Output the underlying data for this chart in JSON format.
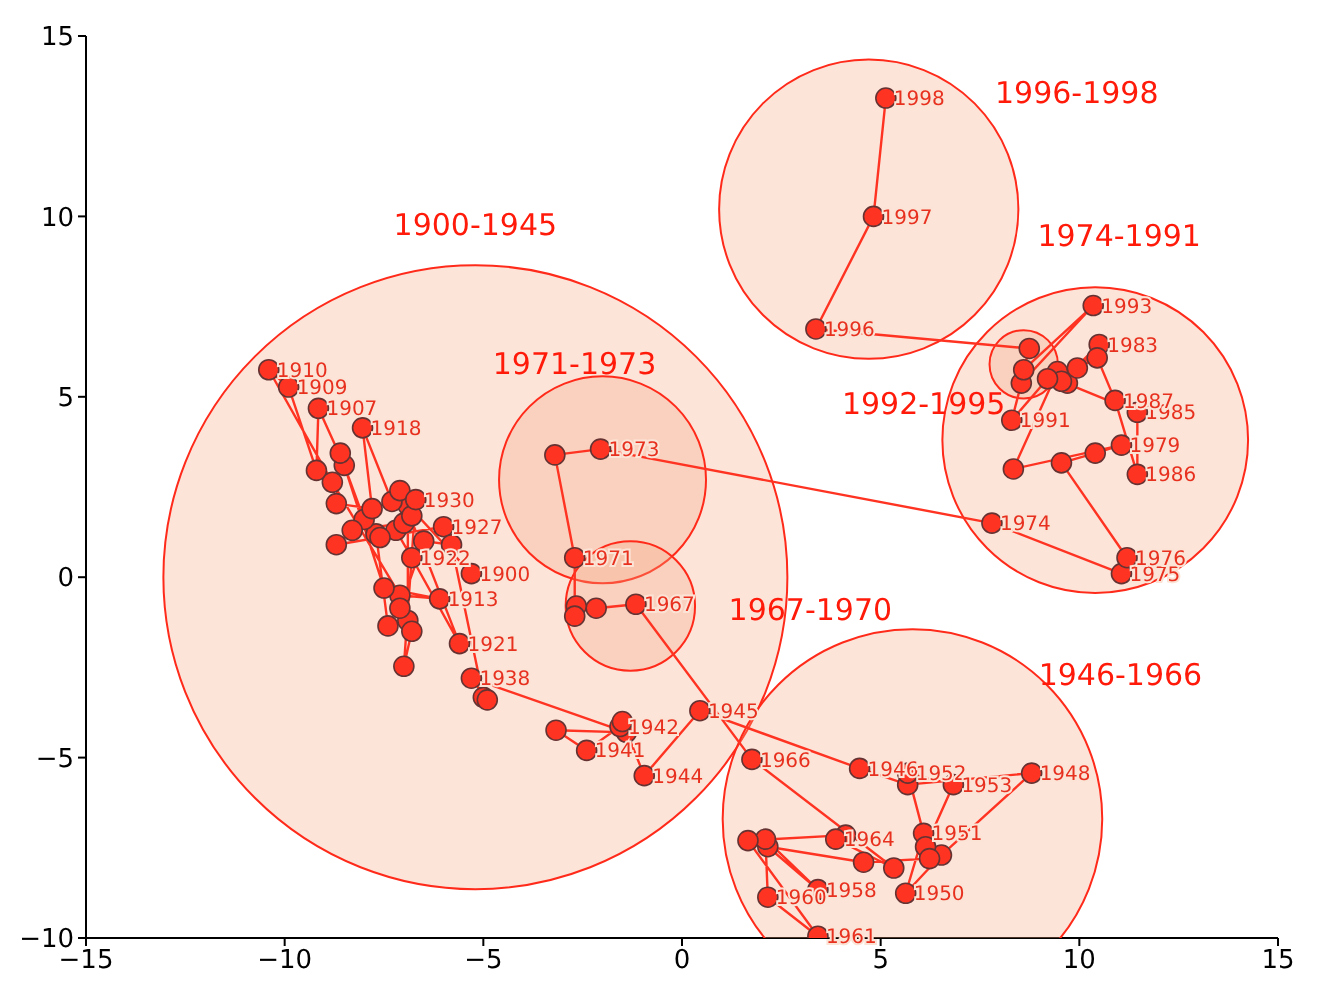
{
  "chart_data": {
    "type": "line",
    "xlim": [
      -15,
      15
    ],
    "ylim": [
      -10,
      15
    ],
    "xticks": [
      -15,
      -10,
      -5,
      0,
      5,
      10,
      15
    ],
    "yticks": [
      -10,
      -5,
      0,
      5,
      10,
      15
    ],
    "marker": "circle",
    "annotations": [
      "1900-1945",
      "1946-1966",
      "1974-1991",
      "1996-1998",
      "1971-1973",
      "1967-1970",
      "1992-1995",
      {
        "text": "1900",
        "x": -5.3,
        "y": 0.1
      },
      {
        "text": "1907",
        "x": -9.15,
        "y": 4.68
      },
      {
        "text": "1909",
        "x": -9.9,
        "y": 5.27
      },
      {
        "text": "1910",
        "x": -10.4,
        "y": 5.75
      },
      {
        "text": "1913",
        "x": -6.1,
        "y": -0.6
      },
      {
        "text": "1918",
        "x": -8.04,
        "y": 4.14
      },
      {
        "text": "1921",
        "x": -5.6,
        "y": -1.84
      },
      {
        "text": "1922",
        "x": -6.8,
        "y": 0.54
      },
      {
        "text": "1927",
        "x": -6.0,
        "y": 1.4
      },
      {
        "text": "1930",
        "x": -6.7,
        "y": 2.15
      },
      {
        "text": "1938",
        "x": -5.3,
        "y": -2.8
      },
      {
        "text": "1941",
        "x": -2.4,
        "y": -4.8
      },
      {
        "text": "1942",
        "x": -1.56,
        "y": -4.14
      },
      {
        "text": "1944",
        "x": -0.95,
        "y": -5.5
      },
      {
        "text": "1945",
        "x": 0.45,
        "y": -3.7
      },
      {
        "text": "1946",
        "x": 4.47,
        "y": -5.3
      },
      {
        "text": "1948",
        "x": 8.8,
        "y": -5.43
      },
      {
        "text": "1950",
        "x": 5.63,
        "y": -8.76
      },
      {
        "text": "1951",
        "x": 6.08,
        "y": -7.1
      },
      {
        "text": "1952",
        "x": 5.68,
        "y": -5.43
      },
      {
        "text": "1953",
        "x": 6.83,
        "y": -5.75
      },
      {
        "text": "1958",
        "x": 3.42,
        "y": -8.66
      },
      {
        "text": "1960",
        "x": 2.16,
        "y": -8.87
      },
      {
        "text": "1961",
        "x": 3.42,
        "y": -9.95
      },
      {
        "text": "1964",
        "x": 3.87,
        "y": -7.26
      },
      {
        "text": "1966",
        "x": 1.76,
        "y": -5.05
      },
      {
        "text": "1967",
        "x": -1.16,
        "y": -0.75
      },
      {
        "text": "1971",
        "x": -2.7,
        "y": 0.54
      },
      {
        "text": "1973",
        "x": -2.05,
        "y": 3.55
      },
      {
        "text": "1974",
        "x": 7.8,
        "y": 1.5
      },
      {
        "text": "1975",
        "x": 11.06,
        "y": 0.1
      },
      {
        "text": "1976",
        "x": 11.2,
        "y": 0.54
      },
      {
        "text": "1979",
        "x": 11.06,
        "y": 3.66
      },
      {
        "text": "1983",
        "x": 10.5,
        "y": 6.45
      },
      {
        "text": "1985",
        "x": 11.46,
        "y": 4.57
      },
      {
        "text": "1986",
        "x": 11.46,
        "y": 2.85
      },
      {
        "text": "1987",
        "x": 10.9,
        "y": 4.9
      },
      {
        "text": "1991",
        "x": 8.3,
        "y": 4.35
      },
      {
        "text": "1993",
        "x": 10.35,
        "y": 7.53
      },
      {
        "text": "1996",
        "x": 3.37,
        "y": 6.88
      },
      {
        "text": "1997",
        "x": 4.82,
        "y": 10.0
      },
      {
        "text": "1998",
        "x": 5.13,
        "y": 13.28
      }
    ],
    "series": [
      {
        "type": "bubble",
        "color": "#f4a582",
        "x": [
          -5.2,
          5.8,
          10.4,
          4.7,
          -2,
          -1.3,
          8.6
        ],
        "values": [
          0,
          -6.7,
          3.8,
          10.2,
          2.7,
          -0.8,
          5.9
        ],
        "sizes": [
          1,
          0.37,
          0.24,
          0.23,
          0.11,
          0.043,
          0.012
        ]
      },
      {
        "color": "#ff3322",
        "x": [
          -5.3,
          -6.9,
          -6.9,
          -7.4,
          -7.7,
          -8.0,
          -8.5,
          -9.15,
          -9.2,
          -9.9,
          -10.4,
          -8.8,
          -7.1,
          -6.1,
          -7.5,
          -8.6,
          -8.7,
          -7.8,
          -8.04,
          -7.3,
          -7.1,
          -5.6,
          -6.8,
          -7.2,
          -7.0,
          -8.3,
          -8.7,
          -6.0,
          -7.6,
          -6.8,
          -6.7,
          -7.0,
          -6.8,
          -7.1,
          -6.5,
          -5.8,
          -5.0,
          -4.9,
          -5.3,
          -1.4,
          -3.17,
          -2.4,
          -1.56,
          -1.5,
          -0.95,
          0.45,
          4.47,
          5.68,
          8.8,
          6.53,
          5.63,
          6.08,
          5.68,
          6.83,
          6.13,
          6.23,
          4.57,
          2.16,
          3.42,
          2.1,
          2.16,
          3.42,
          1.66,
          4.12,
          3.87,
          5.33,
          1.76,
          -1.16,
          -2.16,
          -2.66,
          -2.7,
          -2.7,
          -3.2,
          -2.05,
          7.8,
          11.06,
          11.2,
          9.55,
          10.4,
          11.06,
          8.34,
          9.45,
          9.7,
          10.5,
          9.55,
          11.46,
          11.46,
          10.9,
          10.45,
          9.95,
          9.2,
          8.3,
          8.54,
          10.35,
          8.6,
          8.74,
          3.37,
          4.82,
          5.13
        ],
        "values": [
          0.1,
          2.0,
          -1.2,
          -1.35,
          1.2,
          1.6,
          3.1,
          4.68,
          2.96,
          5.27,
          5.75,
          2.63,
          -0.5,
          -0.6,
          -0.3,
          3.44,
          2.04,
          1.9,
          4.14,
          2.1,
          2.4,
          -1.84,
          0.54,
          1.3,
          1.5,
          1.3,
          0.9,
          1.4,
          1.1,
          1.7,
          2.15,
          -2.47,
          -1.5,
          -0.86,
          1.0,
          0.9,
          -3.33,
          -3.4,
          -2.8,
          -4.3,
          -4.24,
          -4.8,
          -4.14,
          -4.0,
          -5.5,
          -3.7,
          -5.3,
          -5.75,
          -5.43,
          -7.7,
          -8.76,
          -7.1,
          -5.43,
          -5.75,
          -7.47,
          -7.8,
          -7.9,
          -7.47,
          -8.66,
          -7.26,
          -8.87,
          -9.95,
          -7.3,
          -7.15,
          -7.26,
          -8.06,
          -5.05,
          -0.75,
          -0.86,
          -0.8,
          -1.08,
          0.54,
          3.39,
          3.55,
          1.5,
          0.1,
          0.54,
          3.17,
          3.44,
          3.66,
          3.0,
          5.7,
          5.38,
          6.45,
          5.43,
          4.57,
          2.85,
          4.9,
          6.08,
          5.8,
          5.5,
          4.35,
          5.38,
          7.53,
          5.75,
          6.34,
          6.88,
          10.0,
          13.28
        ]
      }
    ]
  }
}
